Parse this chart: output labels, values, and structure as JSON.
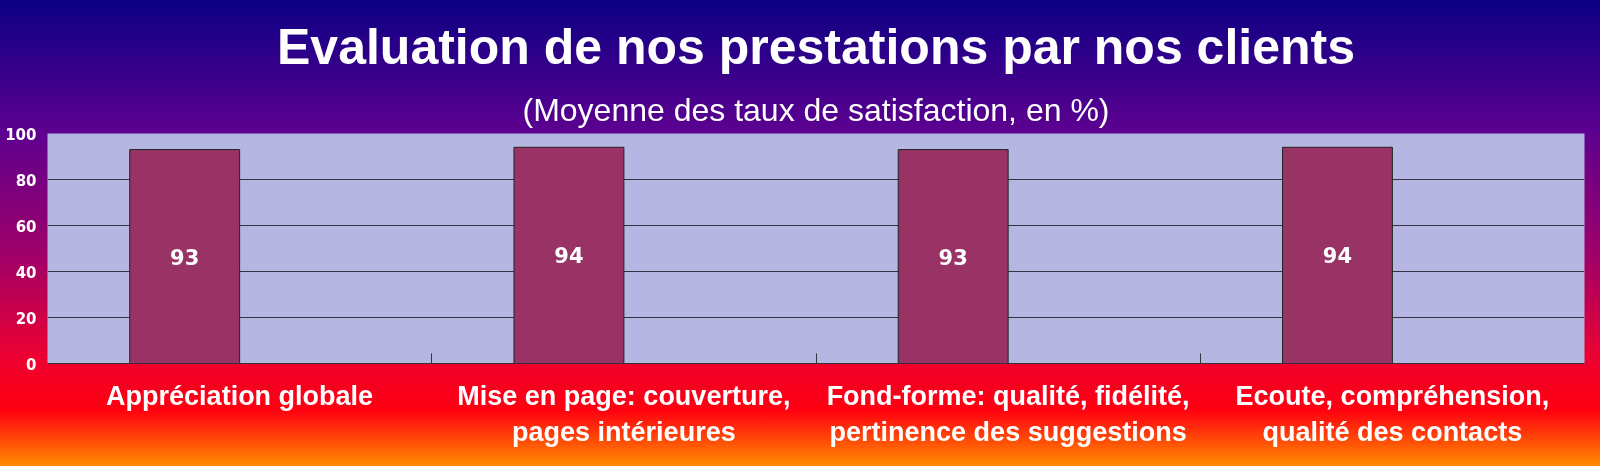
{
  "chart_data": {
    "type": "bar",
    "title": "Evaluation de nos prestations par nos clients",
    "subtitle": "(Moyenne des taux de satisfaction, en %)",
    "categories": [
      "Appréciation globale",
      "Mise en page: couverture, pages intérieures",
      "Fond-forme: qualité, fidélité, pertinence des suggestions",
      "Ecoute, compréhension, qualité des contacts"
    ],
    "values": [
      93,
      94,
      93,
      94
    ],
    "color": "#993366",
    "ylim": [
      0,
      100
    ],
    "yticks": [
      0,
      20,
      40,
      60,
      80,
      100
    ],
    "grid": "y",
    "data_labels": true
  }
}
